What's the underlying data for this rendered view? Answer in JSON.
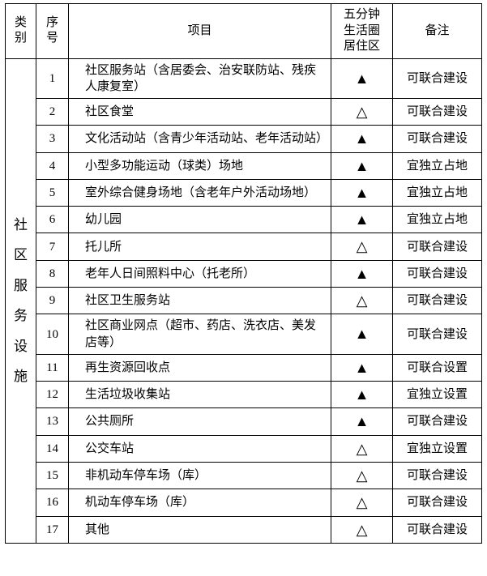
{
  "headers": {
    "category": "类别",
    "index": "序号",
    "item": "项目",
    "zone": "五分钟\n生活圈\n居住区",
    "note": "备注"
  },
  "categoryLabel": "社\n区\n服\n务\n设\n施",
  "symbols": {
    "solid": "▲",
    "hollow": "△"
  },
  "rows": [
    {
      "n": "1",
      "item": "社区服务站（含居委会、治安联防站、残疾人康复室）",
      "sym": "solid",
      "note": "可联合建设"
    },
    {
      "n": "2",
      "item": "社区食堂",
      "sym": "hollow",
      "note": "可联合建设"
    },
    {
      "n": "3",
      "item": "文化活动站（含青少年活动站、老年活动站）",
      "sym": "solid",
      "note": "可联合建设"
    },
    {
      "n": "4",
      "item": "小型多功能运动（球类）场地",
      "sym": "solid",
      "note": "宜独立占地"
    },
    {
      "n": "5",
      "item": "室外综合健身场地（含老年户外活动场地）",
      "sym": "solid",
      "note": "宜独立占地"
    },
    {
      "n": "6",
      "item": "幼儿园",
      "sym": "solid",
      "note": "宜独立占地"
    },
    {
      "n": "7",
      "item": "托儿所",
      "sym": "hollow",
      "note": "可联合建设"
    },
    {
      "n": "8",
      "item": "老年人日间照料中心（托老所）",
      "sym": "solid",
      "note": "可联合建设"
    },
    {
      "n": "9",
      "item": "社区卫生服务站",
      "sym": "hollow",
      "note": "可联合建设"
    },
    {
      "n": "10",
      "item": "社区商业网点（超市、药店、洗衣店、美发店等）",
      "sym": "solid",
      "note": "可联合建设"
    },
    {
      "n": "11",
      "item": "再生资源回收点",
      "sym": "solid",
      "note": "可联合设置"
    },
    {
      "n": "12",
      "item": "生活垃圾收集站",
      "sym": "solid",
      "note": "宜独立设置"
    },
    {
      "n": "13",
      "item": "公共厕所",
      "sym": "solid",
      "note": "可联合建设"
    },
    {
      "n": "14",
      "item": "公交车站",
      "sym": "hollow",
      "note": "宜独立设置"
    },
    {
      "n": "15",
      "item": "非机动车停车场（库）",
      "sym": "hollow",
      "note": "可联合建设"
    },
    {
      "n": "16",
      "item": "机动车停车场（库）",
      "sym": "hollow",
      "note": "可联合建设"
    },
    {
      "n": "17",
      "item": "其他",
      "sym": "hollow",
      "note": "可联合建设"
    }
  ]
}
